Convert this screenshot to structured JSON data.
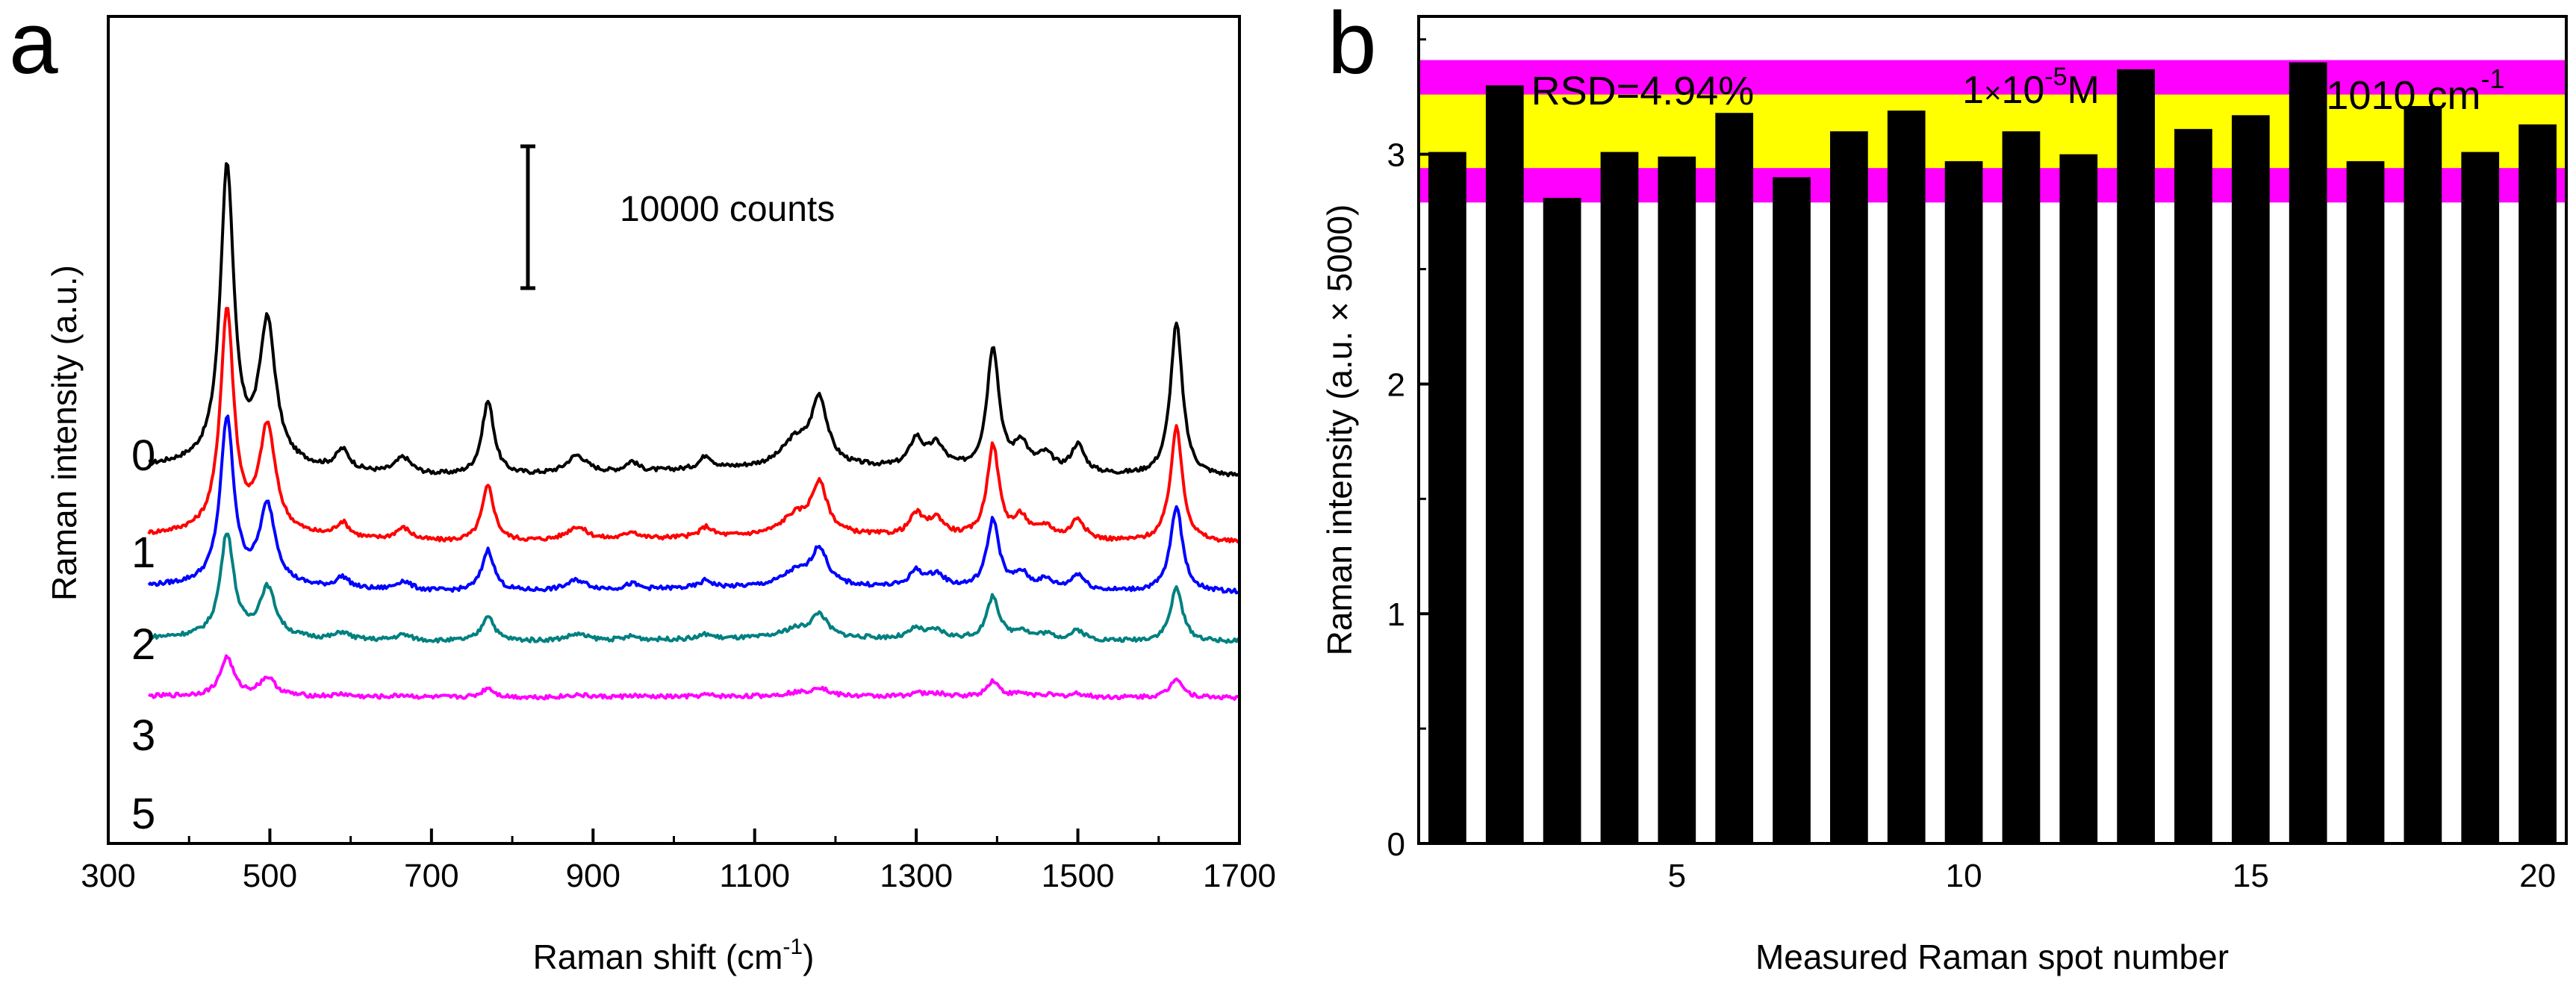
{
  "chart_data": [
    {
      "panel": "a",
      "type": "line",
      "xlabel_main": "Raman shift (cm",
      "xlabel_sup": "-1",
      "xlabel_end": ")",
      "ylabel": "Raman intensity (a.u.)",
      "xlim": [
        300,
        1700
      ],
      "xticks": [
        300,
        500,
        700,
        900,
        1100,
        1300,
        1500,
        1700
      ],
      "scale_bar_label": "10000 counts",
      "scale_bar_counts": 10000,
      "series": [
        {
          "name": "0",
          "color": "#000000",
          "scale": 1.0,
          "offset": 0
        },
        {
          "name": "1",
          "color": "#ff0000",
          "scale": 0.75,
          "offset": -4
        },
        {
          "name": "2",
          "color": "#0000ff",
          "scale": 0.56,
          "offset": -7
        },
        {
          "name": "3",
          "color": "#008080",
          "scale": 0.35,
          "offset": -10
        },
        {
          "name": "5",
          "color": "#ff00ff",
          "scale": 0.13,
          "offset": -13.4
        }
      ],
      "peaks": [
        {
          "x": 447,
          "w": 10,
          "h": 18.0
        },
        {
          "x": 497,
          "w": 12,
          "h": 8.5
        },
        {
          "x": 590,
          "w": 10,
          "h": 1.2
        },
        {
          "x": 665,
          "w": 12,
          "h": 1.0
        },
        {
          "x": 770,
          "w": 9,
          "h": 4.5
        },
        {
          "x": 880,
          "w": 15,
          "h": 1.1
        },
        {
          "x": 948,
          "w": 9,
          "h": 0.6
        },
        {
          "x": 1040,
          "w": 9,
          "h": 0.8
        },
        {
          "x": 1150,
          "w": 20,
          "h": 1.5
        },
        {
          "x": 1180,
          "w": 12,
          "h": 4.0
        },
        {
          "x": 1300,
          "w": 10,
          "h": 1.7
        },
        {
          "x": 1325,
          "w": 12,
          "h": 1.4
        },
        {
          "x": 1395,
          "w": 9,
          "h": 7.5
        },
        {
          "x": 1430,
          "w": 10,
          "h": 1.6
        },
        {
          "x": 1460,
          "w": 12,
          "h": 1.0
        },
        {
          "x": 1500,
          "w": 10,
          "h": 1.7
        },
        {
          "x": 1622,
          "w": 9,
          "h": 9.3
        }
      ]
    },
    {
      "panel": "b",
      "type": "bar",
      "xlabel": "Measured Raman spot number",
      "ylabel": "Raman intensity (a.u. × 5000)",
      "xlim": [
        0.5,
        20.5
      ],
      "ylim": [
        0,
        3.6
      ],
      "xticks": [
        5,
        10,
        15,
        20
      ],
      "yticks": [
        0,
        1,
        2,
        3
      ],
      "categories": [
        1,
        2,
        3,
        4,
        5,
        6,
        7,
        8,
        9,
        10,
        11,
        12,
        13,
        14,
        15,
        16,
        17,
        18,
        19,
        20
      ],
      "values": [
        3.01,
        3.3,
        2.81,
        3.01,
        2.99,
        3.18,
        2.9,
        3.1,
        3.19,
        2.97,
        3.1,
        3.0,
        3.37,
        3.11,
        3.17,
        3.4,
        2.97,
        3.21,
        3.01,
        3.13
      ],
      "bar_color": "#000000",
      "rsd_label": "RSD=4.94%",
      "concentration_base": "1",
      "concentration_times": "×",
      "concentration_ten": "10",
      "concentration_exp": "-5",
      "concentration_unit": "M",
      "wavenumber_value": "1010 cm",
      "wavenumber_exp": "-1",
      "bands": [
        {
          "name": "outer",
          "from": 2.79,
          "to": 3.41,
          "color": "#ff00ff"
        },
        {
          "name": "inner",
          "from": 2.94,
          "to": 3.26,
          "color": "#ffff00"
        }
      ]
    }
  ]
}
